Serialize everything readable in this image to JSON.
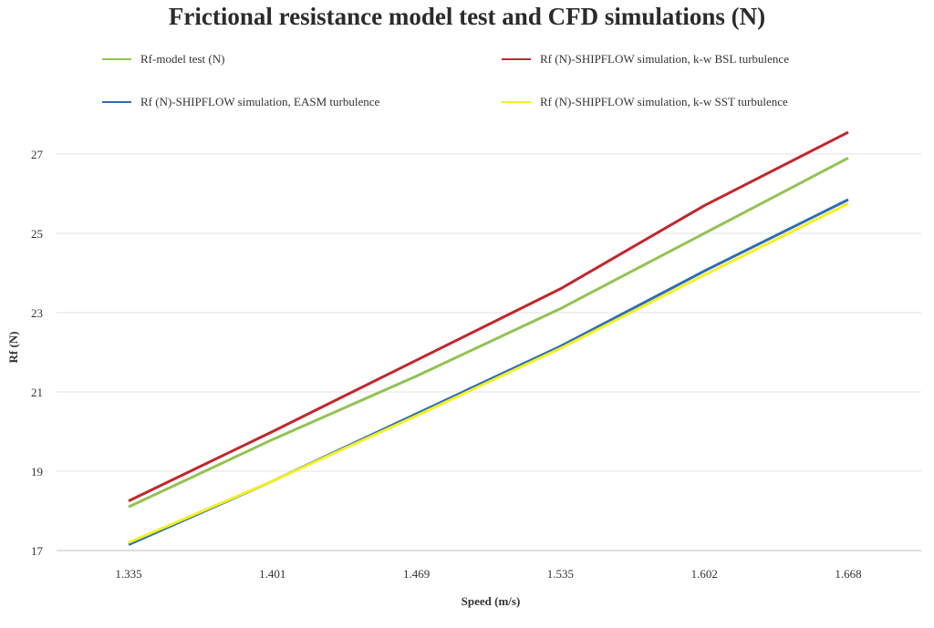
{
  "chart_data": {
    "type": "line",
    "title": "Frictional resistance model test  and CFD simulations (N)",
    "xlabel": "Speed (m/s)",
    "ylabel": "Rf (N)",
    "categories": [
      "1.335",
      "1.401",
      "1.469",
      "1.535",
      "1.602",
      "1.668"
    ],
    "ylim": [
      17,
      28
    ],
    "yticks": [
      17,
      19,
      21,
      23,
      25,
      27
    ],
    "grid": "horizontal",
    "legend_position": "top",
    "series": [
      {
        "name": "Rf-model test (N)",
        "color": "#92c353",
        "values": [
          18.1,
          19.8,
          21.4,
          23.1,
          25.0,
          26.9
        ]
      },
      {
        "name": "Rf (N)-SHIPFLOW simulation, k-w BSL turbulence",
        "color": "#c0282d",
        "values": [
          18.25,
          20.0,
          21.8,
          23.6,
          25.7,
          27.55
        ]
      },
      {
        "name": "Rf (N)-SHIPFLOW simulation, EASM turbulence",
        "color": "#2e6db4",
        "values": [
          17.15,
          18.75,
          20.45,
          22.15,
          24.05,
          25.85
        ]
      },
      {
        "name": "Rf (N)-SHIPFLOW simulation, k-w SST turbulence",
        "color": "#f5f023",
        "values": [
          17.2,
          18.75,
          20.4,
          22.1,
          23.95,
          25.75
        ]
      }
    ]
  }
}
